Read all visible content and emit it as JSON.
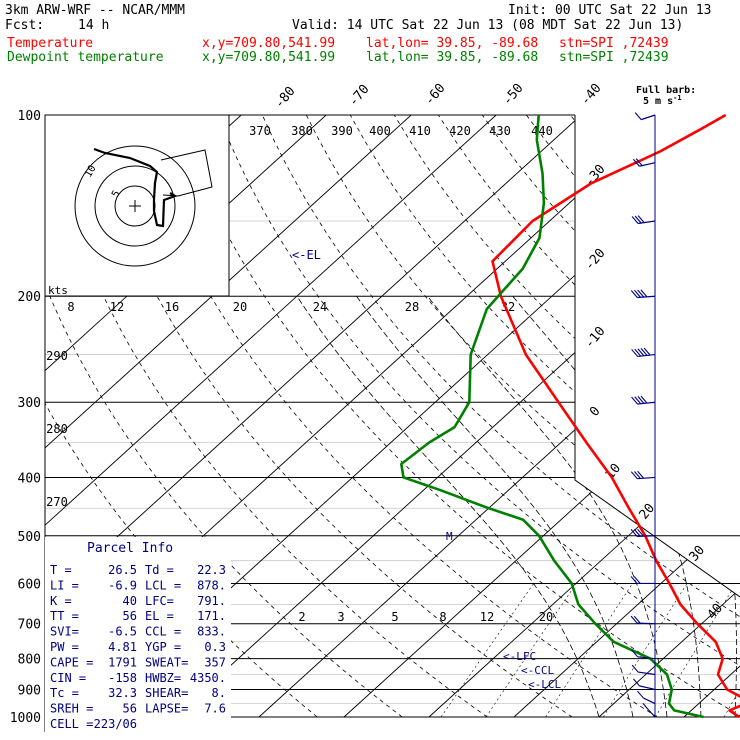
{
  "header": {
    "model": "3km ARW-WRF -- NCAR/MMM",
    "init": "Init: 00 UTC Sat 22 Jun 13",
    "fcst_label": "Fcst:",
    "fcst_value": "14 h",
    "valid": "Valid: 14 UTC Sat 22 Jun 13 (08 MDT Sat 22 Jun 13)",
    "temp_name": "Temperature",
    "dew_name": "Dewpoint temperature",
    "xy": "x,y=709.80,541.99",
    "latlon": "lat,lon= 39.85, -89.68",
    "stn": "stn=SPI ,72439"
  },
  "colors": {
    "temperature": "#ff0000",
    "dewpoint": "#008000",
    "barb": "#000080",
    "parcel_text": "#000080"
  },
  "barb_title": "Full barb:",
  "barb_unit": "5 m s",
  "barb_unit_sup": "-1",
  "hodo_units": "kts",
  "hodo_rings": [
    "5",
    "10"
  ],
  "parcel_title": "Parcel Info",
  "parcel_rows": [
    [
      "T  =",
      "26.5",
      "Td =",
      "22.3"
    ],
    [
      "LI =",
      "-6.9",
      "LCL =",
      "878."
    ],
    [
      "K  =",
      "40",
      "LFC=",
      "791."
    ],
    [
      "TT =",
      "56",
      "EL =",
      "171."
    ],
    [
      "SVI=",
      "-6.5",
      "CCL =",
      "833."
    ],
    [
      "PW =",
      "4.81",
      "YGP =",
      "0.3"
    ],
    [
      "CAPE =",
      "1791",
      "SWEAT=",
      "357"
    ],
    [
      "CIN =",
      "-158",
      "HWBZ=",
      "4350."
    ],
    [
      "Tc =",
      "32.3",
      "SHEAR=",
      "8."
    ],
    [
      "SREH =",
      "56",
      "LAPSE=",
      "7.6"
    ],
    [
      "CELL =",
      "223/06",
      "",
      ""
    ]
  ],
  "markers": {
    "el": "EL",
    "lfc": "LFC",
    "ccl": "CCL",
    "lcl": "LCL",
    "m": "M"
  },
  "chart_data": {
    "type": "line",
    "subtype": "skew-T log-P diagram",
    "y_axis": "pressure (hPa), log scale",
    "pressure_range": [
      1000,
      100
    ],
    "pressure_labels": [
      100,
      200,
      300,
      400,
      500,
      600,
      700,
      800,
      900,
      1000
    ],
    "isotherm_labels": [
      -80,
      -70,
      -60,
      -50,
      -40,
      -30,
      -20,
      -10,
      0,
      10,
      20,
      30,
      40
    ],
    "theta_labels": [
      370,
      380,
      390,
      400,
      410,
      420,
      430,
      440,
      290,
      280,
      270
    ],
    "mixing_ratio_labels": [
      2,
      3,
      5,
      8,
      12,
      20
    ],
    "hodograph_speed_labels": [
      8,
      12,
      16,
      20,
      24,
      28,
      32
    ],
    "series": [
      {
        "name": "Temperature",
        "points": [
          {
            "p": 1000,
            "t": 26.5
          },
          {
            "p": 975,
            "t": 24.5
          },
          {
            "p": 950,
            "t": 25.5
          },
          {
            "p": 925,
            "t": 24.0
          },
          {
            "p": 900,
            "t": 21.5
          },
          {
            "p": 850,
            "t": 18.5
          },
          {
            "p": 800,
            "t": 17.0
          },
          {
            "p": 750,
            "t": 14.0
          },
          {
            "p": 700,
            "t": 9.5
          },
          {
            "p": 650,
            "t": 5.0
          },
          {
            "p": 600,
            "t": 1.0
          },
          {
            "p": 550,
            "t": -3.5
          },
          {
            "p": 500,
            "t": -8.0
          },
          {
            "p": 450,
            "t": -13.5
          },
          {
            "p": 400,
            "t": -19.5
          },
          {
            "p": 350,
            "t": -27.0
          },
          {
            "p": 300,
            "t": -35.5
          },
          {
            "p": 250,
            "t": -45.5
          },
          {
            "p": 200,
            "t": -56.0
          },
          {
            "p": 175,
            "t": -61.5
          },
          {
            "p": 150,
            "t": -62.0
          },
          {
            "p": 130,
            "t": -60.0
          },
          {
            "p": 115,
            "t": -56.0
          },
          {
            "p": 105,
            "t": -54.0
          },
          {
            "p": 100,
            "t": -53.0
          }
        ]
      },
      {
        "name": "Dewpoint temperature",
        "points": [
          {
            "p": 1000,
            "t": 22.3
          },
          {
            "p": 975,
            "t": 18.0
          },
          {
            "p": 950,
            "t": 16.5
          },
          {
            "p": 900,
            "t": 15.0
          },
          {
            "p": 850,
            "t": 12.5
          },
          {
            "p": 800,
            "t": 8.5
          },
          {
            "p": 750,
            "t": 2.0
          },
          {
            "p": 700,
            "t": -2.5
          },
          {
            "p": 650,
            "t": -7.0
          },
          {
            "p": 600,
            "t": -10.5
          },
          {
            "p": 550,
            "t": -15.5
          },
          {
            "p": 500,
            "t": -20.5
          },
          {
            "p": 470,
            "t": -24.5
          },
          {
            "p": 450,
            "t": -30.0
          },
          {
            "p": 420,
            "t": -38.0
          },
          {
            "p": 400,
            "t": -44.0
          },
          {
            "p": 380,
            "t": -46.0
          },
          {
            "p": 350,
            "t": -45.5
          },
          {
            "p": 330,
            "t": -44.5
          },
          {
            "p": 300,
            "t": -46.0
          },
          {
            "p": 250,
            "t": -52.0
          },
          {
            "p": 210,
            "t": -56.0
          },
          {
            "p": 180,
            "t": -57.0
          },
          {
            "p": 160,
            "t": -59.0
          },
          {
            "p": 140,
            "t": -63.0
          },
          {
            "p": 125,
            "t": -67.0
          },
          {
            "p": 110,
            "t": -72.0
          },
          {
            "p": 100,
            "t": -75.0
          }
        ]
      }
    ],
    "wind_barbs_mps": [
      {
        "p": 1000,
        "dir": 200,
        "spd": 3
      },
      {
        "p": 950,
        "dir": 220,
        "spd": 5
      },
      {
        "p": 900,
        "dir": 240,
        "spd": 6
      },
      {
        "p": 850,
        "dir": 250,
        "spd": 6
      },
      {
        "p": 800,
        "dir": 255,
        "spd": 7
      },
      {
        "p": 700,
        "dir": 265,
        "spd": 8
      },
      {
        "p": 600,
        "dir": 270,
        "spd": 10
      },
      {
        "p": 500,
        "dir": 275,
        "spd": 13
      },
      {
        "p": 400,
        "dir": 280,
        "spd": 17
      },
      {
        "p": 300,
        "dir": 285,
        "spd": 22
      },
      {
        "p": 250,
        "dir": 285,
        "spd": 24
      },
      {
        "p": 200,
        "dir": 280,
        "spd": 20
      },
      {
        "p": 150,
        "dir": 290,
        "spd": 16
      },
      {
        "p": 120,
        "dir": 300,
        "spd": 10
      },
      {
        "p": 100,
        "dir": 310,
        "spd": 7
      }
    ]
  }
}
